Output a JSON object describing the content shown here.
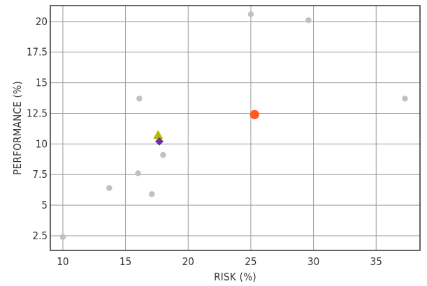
{
  "chart_data": {
    "type": "scatter",
    "title": "",
    "xlabel": "RISK (%)",
    "ylabel": "PERFORMANCE (%)",
    "xlim": [
      9,
      38.5
    ],
    "ylim": [
      1.3,
      21.3
    ],
    "x_ticks": [
      10,
      15,
      20,
      25,
      30,
      35
    ],
    "x_tick_labels": [
      "10",
      "15",
      "20",
      "25",
      "30",
      "35"
    ],
    "y_ticks": [
      2.5,
      5,
      7.5,
      10,
      12.5,
      15,
      17.5,
      20
    ],
    "y_tick_labels": [
      "2.5",
      "5",
      "7.5",
      "10",
      "12.5",
      "15",
      "17.5",
      "20"
    ],
    "grid": true,
    "legend": "none",
    "series": [
      {
        "marker": "circle",
        "color": "#c0c0c0",
        "points": [
          {
            "x": 10.0,
            "y": 2.4
          },
          {
            "x": 13.7,
            "y": 6.4
          },
          {
            "x": 16.0,
            "y": 7.6
          },
          {
            "x": 17.1,
            "y": 5.9
          },
          {
            "x": 18.0,
            "y": 9.1
          },
          {
            "x": 16.1,
            "y": 13.7
          },
          {
            "x": 25.0,
            "y": 20.6
          },
          {
            "x": 29.6,
            "y": 20.1
          },
          {
            "x": 37.3,
            "y": 13.7
          }
        ]
      },
      {
        "marker": "circle-large",
        "color": "#ff5a1f",
        "points": [
          {
            "x": 25.3,
            "y": 12.4
          }
        ]
      },
      {
        "marker": "triangle",
        "color": "#b8b800",
        "points": [
          {
            "x": 17.6,
            "y": 10.7
          }
        ]
      },
      {
        "marker": "diamond",
        "color": "#6a2fa6",
        "points": [
          {
            "x": 17.7,
            "y": 10.2
          }
        ]
      }
    ]
  }
}
